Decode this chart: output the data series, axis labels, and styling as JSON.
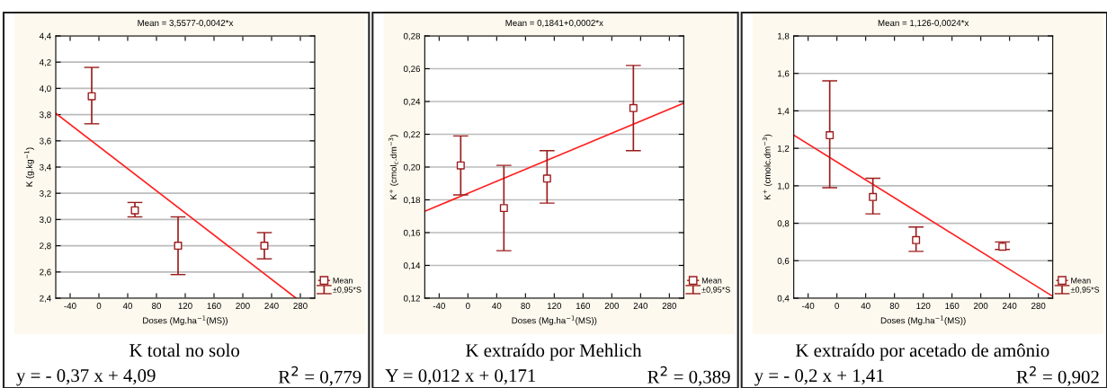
{
  "chart_data": [
    {
      "type": "scatter",
      "title": "Mean = 3,5577-0,0042*x",
      "xlabel": "Doses (Mg.ha$^{−1}$(MS))",
      "ylabel": "K (g.kg$^{−1}$)",
      "xlim": [
        -60,
        300
      ],
      "xticks": [
        -40,
        0,
        40,
        80,
        120,
        160,
        200,
        240,
        280
      ],
      "ylim": [
        2.4,
        4.4
      ],
      "yticks": [
        {
          "value": 2.4,
          "label": "2,4"
        },
        {
          "value": 2.6,
          "label": "2,6"
        },
        {
          "value": 2.8,
          "label": "2,8"
        },
        {
          "value": 3.0,
          "label": "3,0"
        },
        {
          "value": 3.2,
          "label": "3,2"
        },
        {
          "value": 3.4,
          "label": "3,4"
        },
        {
          "value": 3.6,
          "label": "3,6"
        },
        {
          "value": 3.8,
          "label": "3,8"
        },
        {
          "value": 4.0,
          "label": "4,0"
        },
        {
          "value": 4.2,
          "label": "4,2"
        },
        {
          "value": 4.4,
          "label": "4,4"
        }
      ],
      "grid": "y",
      "legend": "bottom right",
      "series": [
        {
          "name": "Mean",
          "marker": "square",
          "color": "#9b1c1c",
          "x": [
            -10,
            50,
            110,
            230
          ],
          "values": [
            3.94,
            3.07,
            2.8,
            2.8
          ],
          "errors": [
            [
              3.73,
              4.16
            ],
            [
              3.02,
              3.13
            ],
            [
              2.58,
              3.02
            ],
            [
              2.7,
              2.9
            ]
          ]
        },
        {
          "type": "line",
          "color": "#ff2020",
          "x": [
            -60,
            274
          ],
          "values": [
            3.81,
            2.4
          ]
        }
      ],
      "annotations": [
        "±0,95*S",
        "K total no solo",
        "y = - 0,37 x + 4,09",
        "R$^{2}$ = 0,779"
      ]
    },
    {
      "type": "scatter",
      "title": "Mean = 0,1841+0,0002*x",
      "xlabel": "Doses (Mg.ha$^{−1}$(MS))",
      "ylabel": "K$^{+}$ (cmol$_{c}$.dm$^{−3}$)",
      "xlim": [
        -60,
        300
      ],
      "xticks": [
        -40,
        0,
        40,
        80,
        120,
        160,
        200,
        240,
        280
      ],
      "ylim": [
        0.12,
        0.28
      ],
      "yticks": [
        {
          "value": 0.12,
          "label": "0,12"
        },
        {
          "value": 0.14,
          "label": "0,14"
        },
        {
          "value": 0.16,
          "label": "0,16"
        },
        {
          "value": 0.18,
          "label": "0,18"
        },
        {
          "value": 0.2,
          "label": "0,20"
        },
        {
          "value": 0.22,
          "label": "0,22"
        },
        {
          "value": 0.24,
          "label": "0,24"
        },
        {
          "value": 0.26,
          "label": "0,26"
        },
        {
          "value": 0.28,
          "label": "0,28"
        }
      ],
      "grid": "y",
      "legend": "bottom right",
      "series": [
        {
          "name": "Mean",
          "marker": "square",
          "color": "#9b1c1c",
          "x": [
            -10,
            50,
            110,
            230
          ],
          "values": [
            0.201,
            0.175,
            0.193,
            0.236
          ],
          "errors": [
            [
              0.183,
              0.219
            ],
            [
              0.149,
              0.201
            ],
            [
              0.178,
              0.21
            ],
            [
              0.21,
              0.262
            ]
          ]
        },
        {
          "type": "line",
          "color": "#ff2020",
          "x": [
            -60,
            300
          ],
          "values": [
            0.173,
            0.239
          ]
        }
      ],
      "annotations": [
        "±0,95*S",
        "K extraído por Mehlich",
        "Y = 0,012 x + 0,171",
        "R$^{2}$ = 0,389"
      ]
    },
    {
      "type": "scatter",
      "title": "Mean = 1,126-0,0024*x",
      "xlabel": "Doses (Mg.ha$^{−1}$(MS))",
      "ylabel": "K$^{+}$ (cmolc.dm$^{−3}$)",
      "xlim": [
        -60,
        300
      ],
      "xticks": [
        -40,
        0,
        40,
        80,
        120,
        160,
        200,
        240,
        280
      ],
      "ylim": [
        0.4,
        1.8
      ],
      "yticks": [
        {
          "value": 0.4,
          "label": "0,4"
        },
        {
          "value": 0.6,
          "label": "0,6"
        },
        {
          "value": 0.8,
          "label": "0,8"
        },
        {
          "value": 1.0,
          "label": "1,0"
        },
        {
          "value": 1.2,
          "label": "1,2"
        },
        {
          "value": 1.4,
          "label": "1,4"
        },
        {
          "value": 1.6,
          "label": "1,6"
        },
        {
          "value": 1.8,
          "label": "1,8"
        }
      ],
      "grid": "y",
      "legend": "bottom right",
      "series": [
        {
          "name": "Mean",
          "marker": "square",
          "color": "#9b1c1c",
          "x": [
            -10,
            50,
            110,
            230
          ],
          "values": [
            1.27,
            0.94,
            0.71,
            0.675
          ],
          "errors": [
            [
              0.99,
              1.56
            ],
            [
              0.85,
              1.04
            ],
            [
              0.65,
              0.78
            ],
            [
              0.66,
              0.7
            ]
          ]
        },
        {
          "type": "line",
          "color": "#ff2020",
          "x": [
            -60,
            300
          ],
          "values": [
            1.27,
            0.41
          ]
        }
      ],
      "annotations": [
        "±0,95*S",
        "K extraído por acetado de amônio",
        "y = - 0,2 x + 1,41",
        "R$^{2}$ = 0,902"
      ]
    }
  ]
}
